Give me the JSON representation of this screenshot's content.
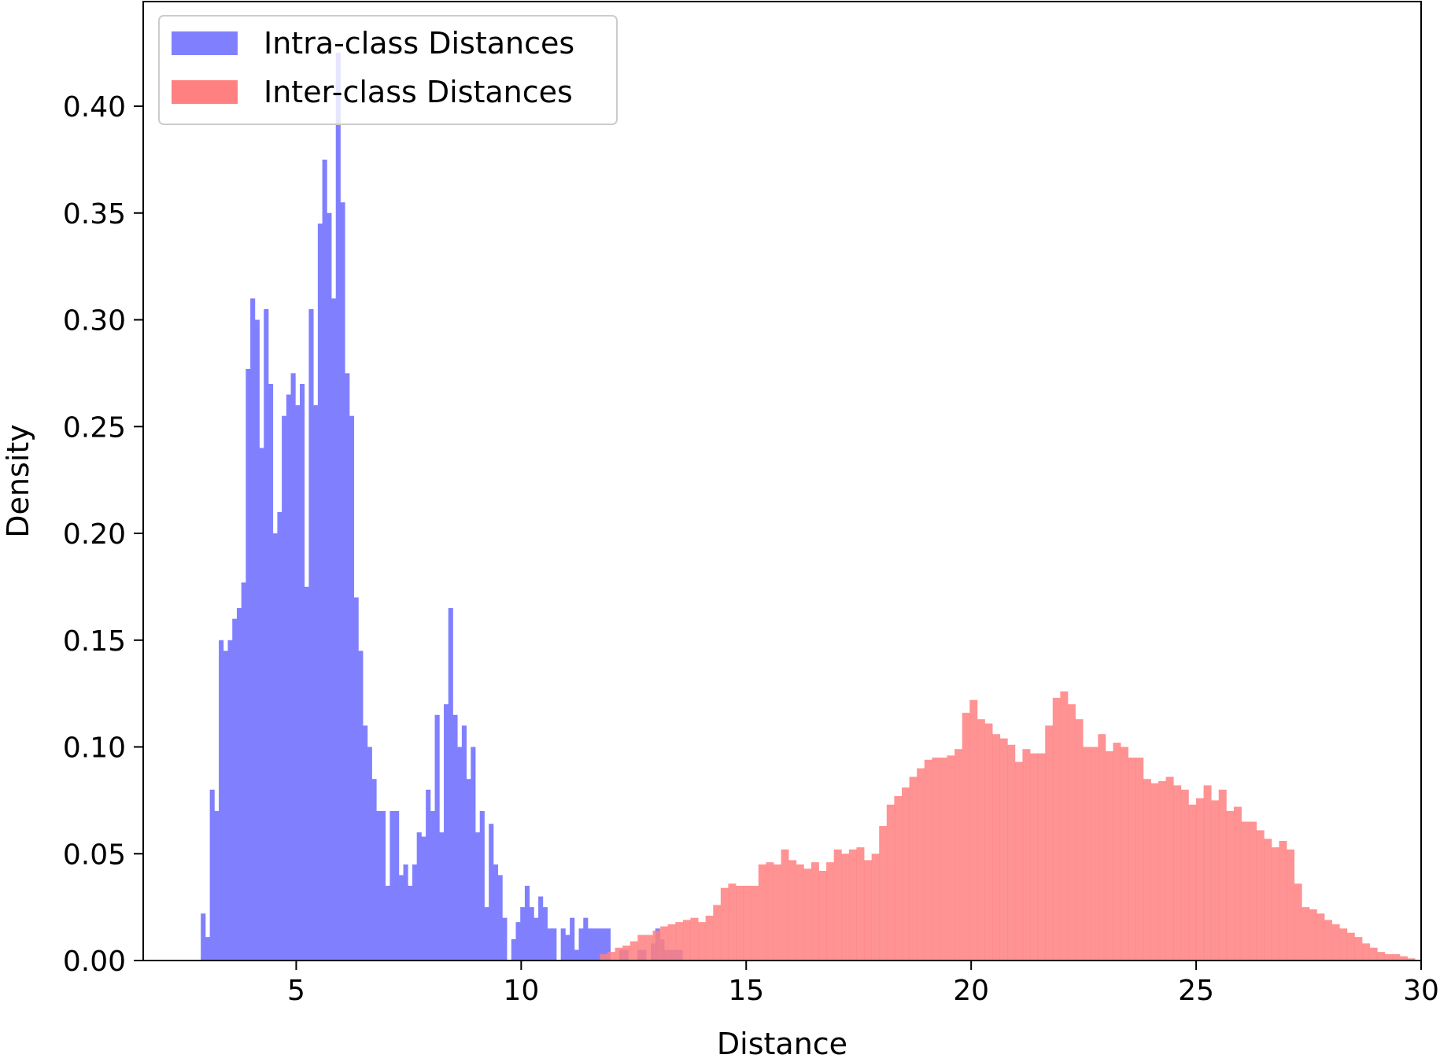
{
  "chart_data": {
    "type": "bar",
    "title": "",
    "xlabel": "Distance",
    "ylabel": "Density",
    "xlim": [
      1.6,
      30.0
    ],
    "ylim": [
      0.0,
      0.449
    ],
    "xticks": [
      5,
      10,
      15,
      20,
      25,
      30
    ],
    "yticks": [
      0.0,
      0.05,
      0.1,
      0.15,
      0.2,
      0.25,
      0.3,
      0.35,
      0.4
    ],
    "xtick_labels": [
      "5",
      "10",
      "15",
      "20",
      "25",
      "30"
    ],
    "ytick_labels": [
      "0.00",
      "0.05",
      "0.10",
      "0.15",
      "0.20",
      "0.25",
      "0.30",
      "0.35",
      "0.40"
    ],
    "legend": {
      "placement": "upper-left"
    },
    "grid": false,
    "series": [
      {
        "name": "Intra-class Distances",
        "color": "#8080ff",
        "bin_start": 2.88,
        "bin_width": 0.1,
        "values": [
          0.022,
          0.011,
          0.08,
          0.07,
          0.15,
          0.145,
          0.15,
          0.16,
          0.165,
          0.177,
          0.277,
          0.31,
          0.3,
          0.24,
          0.305,
          0.27,
          0.2,
          0.21,
          0.255,
          0.265,
          0.275,
          0.26,
          0.27,
          0.175,
          0.305,
          0.26,
          0.345,
          0.375,
          0.35,
          0.31,
          0.425,
          0.355,
          0.275,
          0.255,
          0.17,
          0.145,
          0.11,
          0.1,
          0.085,
          0.07,
          0.07,
          0.035,
          0.07,
          0.07,
          0.04,
          0.045,
          0.035,
          0.045,
          0.06,
          0.058,
          0.08,
          0.07,
          0.115,
          0.06,
          0.12,
          0.165,
          0.115,
          0.1,
          0.11,
          0.085,
          0.1,
          0.06,
          0.07,
          0.025,
          0.064,
          0.045,
          0.04,
          0.02,
          0.0,
          0.01,
          0.018,
          0.025,
          0.035,
          0.025,
          0.02,
          0.03,
          0.025,
          0.015,
          0.015,
          0.0,
          0.015,
          0.012,
          0.02,
          0.005,
          0.015,
          0.02,
          0.015,
          0.015,
          0.015,
          0.015,
          0.015,
          0.0,
          0.0,
          0.005,
          0.005,
          0.0,
          0.0,
          0.005,
          0.005,
          0.0,
          0.008,
          0.015,
          0.01,
          0.005,
          0.005,
          0.005,
          0.005
        ]
      },
      {
        "name": "Inter-class Distances",
        "color": "#ff8080",
        "bin_start": 11.75,
        "bin_width": 0.1677,
        "values": [
          0.003,
          0.004,
          0.006,
          0.007,
          0.009,
          0.012,
          0.012,
          0.014,
          0.016,
          0.017,
          0.018,
          0.019,
          0.02,
          0.018,
          0.021,
          0.026,
          0.034,
          0.036,
          0.035,
          0.035,
          0.035,
          0.045,
          0.046,
          0.045,
          0.052,
          0.047,
          0.045,
          0.043,
          0.046,
          0.042,
          0.046,
          0.052,
          0.05,
          0.052,
          0.053,
          0.047,
          0.05,
          0.063,
          0.073,
          0.077,
          0.081,
          0.086,
          0.09,
          0.094,
          0.095,
          0.095,
          0.096,
          0.099,
          0.116,
          0.122,
          0.113,
          0.111,
          0.106,
          0.104,
          0.101,
          0.093,
          0.099,
          0.097,
          0.097,
          0.11,
          0.123,
          0.126,
          0.12,
          0.113,
          0.1,
          0.1,
          0.106,
          0.098,
          0.102,
          0.1,
          0.095,
          0.095,
          0.085,
          0.083,
          0.084,
          0.086,
          0.082,
          0.08,
          0.073,
          0.076,
          0.082,
          0.075,
          0.08,
          0.07,
          0.072,
          0.065,
          0.065,
          0.061,
          0.057,
          0.053,
          0.056,
          0.052,
          0.036,
          0.025,
          0.024,
          0.022,
          0.019,
          0.017,
          0.015,
          0.013,
          0.011,
          0.008,
          0.006,
          0.004,
          0.003,
          0.003,
          0.002,
          0.001
        ]
      }
    ]
  }
}
